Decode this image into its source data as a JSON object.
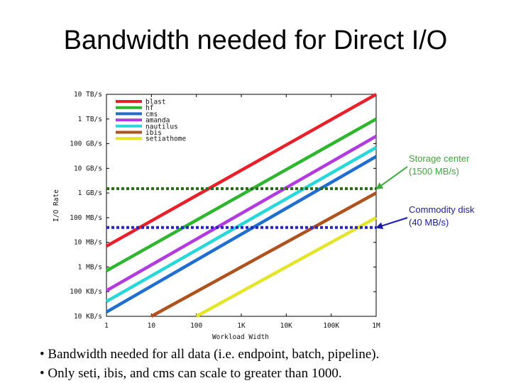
{
  "title": "Bandwidth needed for Direct I/O",
  "chart_data": {
    "type": "line",
    "xlabel": "Workload Width",
    "ylabel": "I/O Rate",
    "x_scale": "log",
    "y_scale": "log",
    "x_ticks": [
      {
        "value": 1,
        "label": "1"
      },
      {
        "value": 10,
        "label": "10"
      },
      {
        "value": 100,
        "label": "100"
      },
      {
        "value": 1000,
        "label": "1K"
      },
      {
        "value": 10000,
        "label": "10K"
      },
      {
        "value": 100000,
        "label": "100K"
      },
      {
        "value": 1000000,
        "label": "1M"
      }
    ],
    "y_ticks": [
      {
        "value": 10000,
        "label": "10 KB/s"
      },
      {
        "value": 100000,
        "label": "100 KB/s"
      },
      {
        "value": 1000000,
        "label": "1 MB/s"
      },
      {
        "value": 10000000,
        "label": "10 MB/s"
      },
      {
        "value": 100000000,
        "label": "100 MB/s"
      },
      {
        "value": 1000000000,
        "label": "1 GB/s"
      },
      {
        "value": 10000000000,
        "label": "10 GB/s"
      },
      {
        "value": 100000000000,
        "label": "100 GB/s"
      },
      {
        "value": 1000000000000,
        "label": "1 TB/s"
      },
      {
        "value": 10000000000000,
        "label": "10 TB/s"
      }
    ],
    "xlim": [
      1,
      1000000
    ],
    "ylim": [
      10000,
      10000000000000
    ],
    "legend_position": "top-left",
    "series": [
      {
        "name": "blast",
        "color": "#e8202a",
        "x": [
          1,
          1000000
        ],
        "y": [
          7000000,
          10000000000000
        ]
      },
      {
        "name": "hf",
        "color": "#2fb62f",
        "x": [
          1,
          1000000
        ],
        "y": [
          700000,
          1000000000000
        ]
      },
      {
        "name": "cms",
        "color": "#1f6fd0",
        "x": [
          1,
          1000000
        ],
        "y": [
          15000,
          30000000000
        ]
      },
      {
        "name": "amanda",
        "color": "#b23be0",
        "x": [
          1,
          1000000
        ],
        "y": [
          110000,
          200000000000
        ]
      },
      {
        "name": "nautilus",
        "color": "#28d8d8",
        "x": [
          1,
          1000000
        ],
        "y": [
          40000,
          70000000000
        ]
      },
      {
        "name": "ibis",
        "color": "#b0521e",
        "x": [
          10,
          1000000
        ],
        "y": [
          10000,
          1000000000
        ]
      },
      {
        "name": "setiathome",
        "color": "#e4e42a",
        "x": [
          100,
          1000000
        ],
        "y": [
          10000,
          100000000
        ]
      }
    ],
    "reference_lines": [
      {
        "label_line1": "Storage center",
        "label_line2": "(1500 MB/s)",
        "y": 1500000000,
        "color": "#2d6b1e",
        "arrow_color": "#3aa83a"
      },
      {
        "label_line1": "Commodity disk",
        "label_line2": "(40 MB/s)",
        "y": 40000000,
        "color": "#2424c8",
        "arrow_color": "#1a1aa8"
      }
    ]
  },
  "bullets": [
    "• Bandwidth needed for all data (i.e. endpoint, batch, pipeline).",
    "• Only seti, ibis, and cms can scale to greater than 1000."
  ]
}
